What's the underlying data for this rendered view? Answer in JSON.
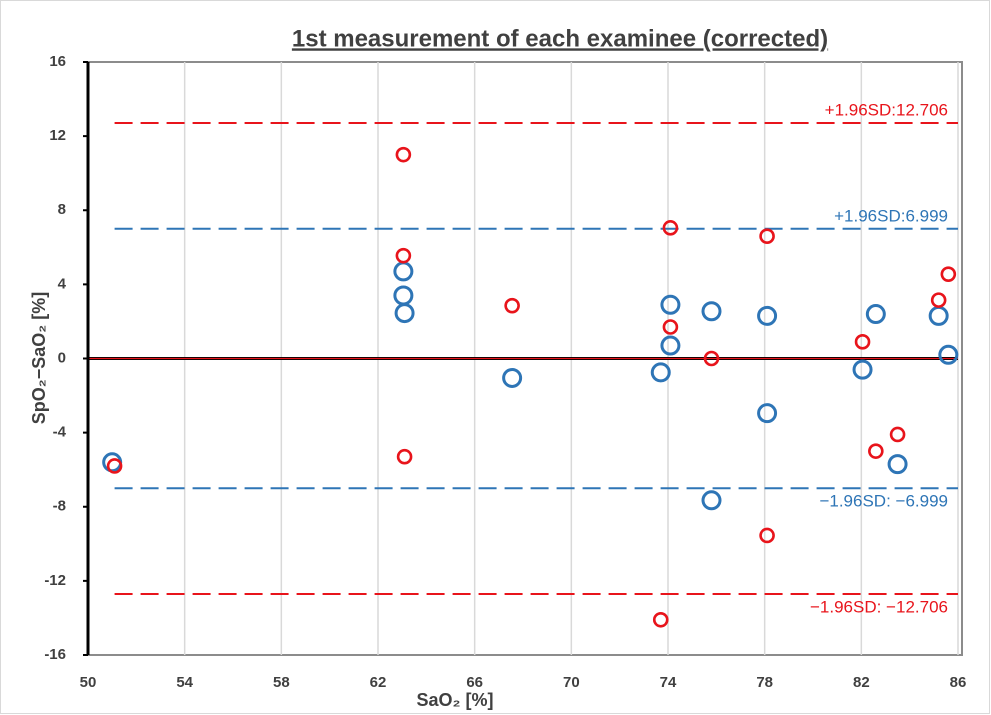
{
  "chart_data": {
    "type": "scatter",
    "title": "1st measurement of each examinee (corrected)",
    "x_label": "SaO₂ [%]",
    "y_label": "SpO₂−SaO₂ [%]",
    "xlim": [
      50,
      86
    ],
    "ylim": [
      -16,
      16
    ],
    "xticks": [
      50,
      54,
      58,
      62,
      66,
      70,
      74,
      78,
      82,
      86
    ],
    "yticks": [
      -16,
      -12,
      -8,
      -4,
      0,
      4,
      8,
      12,
      16
    ],
    "grid": "x",
    "series": [
      {
        "color": "#2e75b6",
        "x": [
          51.0,
          63.05,
          63.05,
          63.1,
          67.55,
          73.7,
          74.1,
          74.1,
          75.8,
          75.8,
          78.1,
          78.1,
          82.05,
          82.6,
          83.5,
          85.2,
          85.6
        ],
        "values": [
          -5.6,
          4.7,
          3.4,
          2.45,
          -1.05,
          -0.75,
          0.7,
          2.9,
          2.55,
          -7.65,
          2.3,
          -2.95,
          -0.6,
          2.4,
          -5.7,
          2.3,
          0.2
        ]
      },
      {
        "color": "#e8141b",
        "x": [
          51.1,
          63.05,
          63.05,
          63.1,
          67.55,
          73.7,
          74.1,
          74.1,
          75.8,
          78.1,
          78.1,
          82.05,
          82.6,
          83.5,
          85.2,
          85.6
        ],
        "values": [
          -5.8,
          11.0,
          5.55,
          -5.3,
          2.85,
          -14.1,
          7.05,
          1.7,
          0.0,
          6.6,
          -9.55,
          0.9,
          -5.0,
          -4.1,
          3.15,
          4.55
        ]
      }
    ],
    "reference_lines": [
      {
        "value": 12.706,
        "x": [
          51.1,
          86
        ],
        "color": "#e8141b",
        "label": "+1.96SD:12.706"
      },
      {
        "value": 6.999,
        "x": [
          51.1,
          86
        ],
        "color": "#2e75b6",
        "label": "+1.96SD:6.999"
      },
      {
        "value": -6.999,
        "x": [
          51.1,
          86
        ],
        "color": "#2e75b6",
        "label": "−1.96SD: −6.999"
      },
      {
        "value": -12.706,
        "x": [
          51.1,
          86
        ],
        "color": "#e8141b",
        "label": "−1.96SD: −12.706"
      }
    ]
  }
}
